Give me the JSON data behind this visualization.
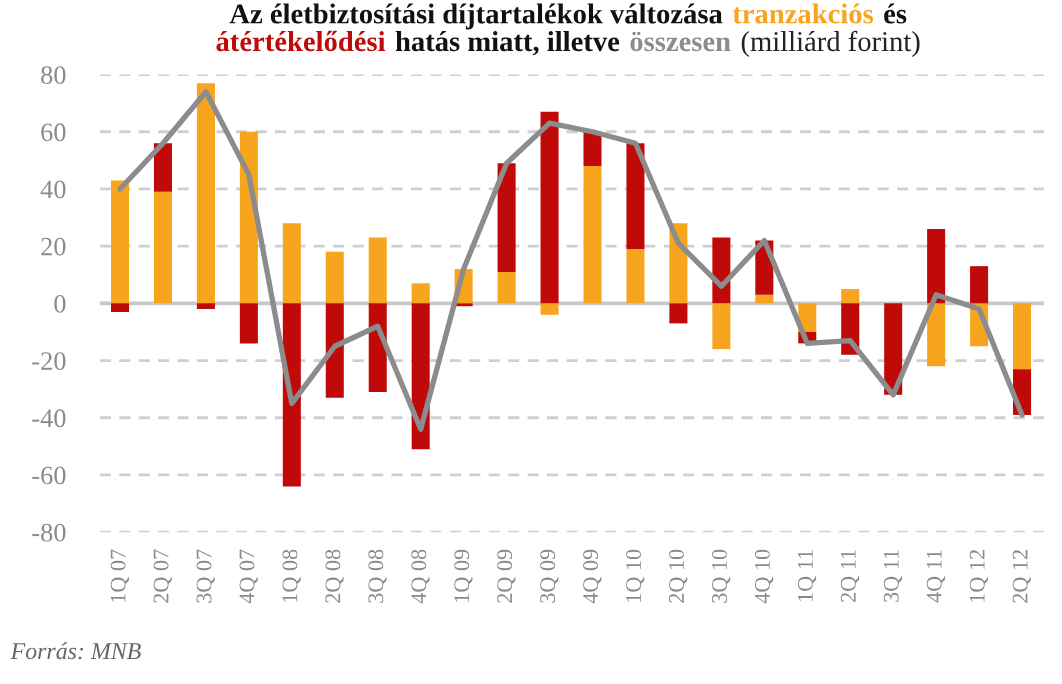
{
  "chart_data": {
    "type": "bar",
    "stacked": true,
    "title": "Az életbiztosítási díjtartalékok változása",
    "subtitle": "(milliárd forint)",
    "categories": [
      "1Q 07",
      "2Q 07",
      "3Q 07",
      "4Q 07",
      "1Q 08",
      "2Q 08",
      "3Q 08",
      "4Q 08",
      "1Q 09",
      "2Q 09",
      "3Q 09",
      "4Q 09",
      "1Q 10",
      "2Q 10",
      "3Q 10",
      "4Q 10",
      "1Q 11",
      "2Q 11",
      "3Q 11",
      "4Q 11",
      "1Q 12",
      "2Q 12"
    ],
    "series": [
      {
        "name": "tranzakciós",
        "color": "#f7a51e",
        "values": [
          43,
          39,
          77,
          60,
          28,
          18,
          23,
          7,
          12,
          11,
          -4,
          48,
          19,
          28,
          -16,
          3,
          -10,
          5,
          null,
          -22,
          -15,
          -23
        ]
      },
      {
        "name": "átértékelődési",
        "color": "#c00a0a",
        "values": [
          -3,
          17,
          -2,
          -14,
          -64,
          -33,
          -31,
          -51,
          -1,
          38,
          67,
          12,
          37,
          -7,
          23,
          19,
          -4,
          -18,
          -32,
          26,
          13,
          -16
        ]
      },
      {
        "name": "összesen",
        "type": "line",
        "color": "#8c8c8c",
        "values": [
          40,
          56,
          74,
          45,
          -35,
          -15,
          -8,
          -44,
          12,
          49,
          63,
          60,
          56,
          21,
          6,
          22,
          -14,
          -13,
          -32,
          3,
          -2,
          -39
        ]
      }
    ],
    "ylim": [
      -80,
      80
    ],
    "yticks": [
      -80,
      -60,
      -40,
      -20,
      0,
      20,
      40,
      60,
      80
    ],
    "grid": "y",
    "ref_lines": [
      {
        "axis": "y",
        "value": 0,
        "color": "#c8c8c8"
      }
    ],
    "annotations": [
      "és",
      "hatás miatt, illetve",
      "Forrás: MNB"
    ]
  }
}
